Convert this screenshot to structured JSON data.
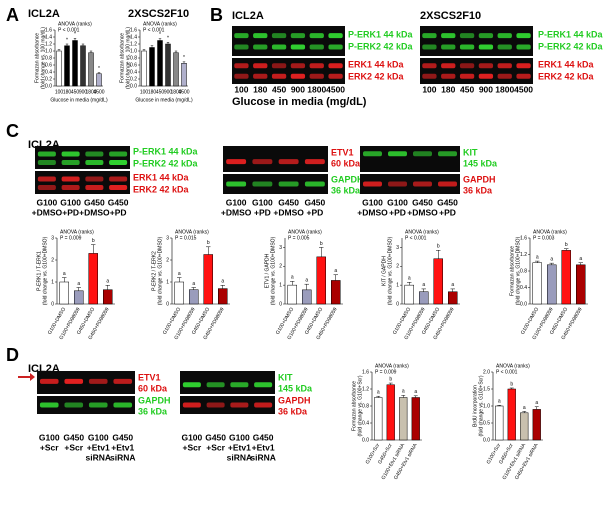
{
  "panel_letters": [
    "A",
    "B",
    "C",
    "D"
  ],
  "panel_a": {
    "cell_lines": [
      "ICL2A",
      "2XSCS2F10"
    ]
  },
  "panel_b": {
    "cell_lines": [
      "ICL2A",
      "2XSCS2F10"
    ],
    "blots": [
      {
        "labels": [
          {
            "text": "P-ERK1 44 kDa",
            "color": "#22cc22"
          },
          {
            "text": "P-ERK2 42 kDa",
            "color": "#22cc22"
          },
          {
            "text": "ERK1 44 kDa",
            "color": "#dd1111"
          },
          {
            "text": "ERK2 42 kDa",
            "color": "#dd1111"
          }
        ],
        "lanes": [
          "100",
          "180",
          "450",
          "900",
          "1800",
          "4500"
        ]
      },
      {
        "labels": [
          {
            "text": "P-ERK1 44 kDa",
            "color": "#22cc22"
          },
          {
            "text": "P-ERK2 42 kDa",
            "color": "#22cc22"
          },
          {
            "text": "ERK1 44 kDa",
            "color": "#dd1111"
          },
          {
            "text": "ERK2 42 kDa",
            "color": "#dd1111"
          }
        ],
        "lanes": [
          "100",
          "180",
          "450",
          "900",
          "1800",
          "4500"
        ]
      }
    ],
    "xlabel": "Glucose in media (mg/dL)"
  },
  "panel_c": {
    "cell_line": "ICL2A",
    "blots": [
      {
        "labels": [
          {
            "text": "P-ERK1 44 kDa",
            "color": "#22cc22"
          },
          {
            "text": "P-ERK2 42 kDa",
            "color": "#22cc22"
          },
          {
            "text": "ERK1 44 kDa",
            "color": "#dd1111"
          },
          {
            "text": "ERK2 42 kDa",
            "color": "#dd1111"
          }
        ],
        "lanes": [
          [
            "G100",
            "+DMSO"
          ],
          [
            "G100",
            "+PD"
          ],
          [
            "G450",
            "+DMSO"
          ],
          [
            "G450",
            "+PD"
          ]
        ]
      },
      {
        "labels": [
          {
            "text": "ETV1",
            "color": "#dd1111"
          },
          {
            "text": "60 kDa",
            "color": "#dd1111"
          },
          {
            "text": "GAPDH",
            "color": "#22cc22"
          },
          {
            "text": "36 kDa",
            "color": "#22cc22"
          }
        ],
        "lanes": [
          [
            "G100",
            "+DMSO"
          ],
          [
            "G100",
            "+PD"
          ],
          [
            "G450",
            "+DMSO"
          ],
          [
            "G450",
            "+PD"
          ]
        ]
      },
      {
        "labels": [
          {
            "text": "KIT",
            "color": "#22cc22"
          },
          {
            "text": "145 kDa",
            "color": "#22cc22"
          },
          {
            "text": "GAPDH",
            "color": "#dd1111"
          },
          {
            "text": "36 kDa",
            "color": "#dd1111"
          }
        ],
        "lanes": [
          [
            "G100",
            "+DMSO"
          ],
          [
            "G100",
            "+PD"
          ],
          [
            "G450",
            "+DMSO"
          ],
          [
            "G450",
            "+PD"
          ]
        ]
      }
    ]
  },
  "panel_d": {
    "cell_line": "ICL2A",
    "blots": [
      {
        "labels": [
          {
            "text": "ETV1",
            "color": "#dd1111"
          },
          {
            "text": "60 kDa",
            "color": "#dd1111"
          },
          {
            "text": "GAPDH",
            "color": "#22cc22"
          },
          {
            "text": "36 kDa",
            "color": "#22cc22"
          }
        ],
        "lanes": [
          [
            "G100",
            "+Scr"
          ],
          [
            "G450",
            "+Scr"
          ],
          [
            "G100",
            "+Etv1",
            "siRNA"
          ],
          [
            "G450",
            "+Etv1",
            "siRNA"
          ]
        ]
      },
      {
        "labels": [
          {
            "text": "KIT",
            "color": "#22cc22"
          },
          {
            "text": "145 kDa",
            "color": "#22cc22"
          },
          {
            "text": "GAPDH",
            "color": "#dd1111"
          },
          {
            "text": "36 kDa",
            "color": "#dd1111"
          }
        ],
        "lanes": [
          [
            "G100",
            "+Scr"
          ],
          [
            "G450",
            "+Scr"
          ],
          [
            "G100",
            "+Etv1",
            "siRNA"
          ],
          [
            "G450",
            "+Etv1",
            "siRNA"
          ]
        ]
      }
    ]
  },
  "chart_data": [
    {
      "type": "bar",
      "title_lines": [
        "ANOVA (ranks)",
        "P < 0.001"
      ],
      "ylabel_lines": [
        "Formazan absorbance",
        "(fold change vs. 100 mg/dL)"
      ],
      "xlabel": "Glucose in media (mg/dL)",
      "categories": [
        "100",
        "180",
        "450",
        "900",
        "1800",
        "4500"
      ],
      "values": [
        1.0,
        1.15,
        1.3,
        1.15,
        0.95,
        0.35
      ],
      "errors": [
        0.04,
        0.05,
        0.06,
        0.05,
        0.05,
        0.03
      ],
      "annotations": [
        null,
        "*",
        "*",
        null,
        null,
        "*"
      ],
      "colors": [
        "#ffffff",
        "#000000",
        "#000000",
        "#333333",
        "#888888",
        "#b0b0cc"
      ],
      "ylim": [
        0,
        1.6
      ],
      "yticks": [
        {
          "value": 0,
          "label": "0.0"
        },
        {
          "value": 0.2,
          "label": "0.2"
        },
        {
          "value": 0.4,
          "label": "0.4"
        },
        {
          "value": 0.6,
          "label": "0.6"
        },
        {
          "value": 0.8,
          "label": "0.8"
        },
        {
          "value": 1.0,
          "label": "1.0"
        },
        {
          "value": 1.2,
          "label": "1.2"
        },
        {
          "value": 1.4,
          "label": "1.4"
        },
        {
          "value": 1.6,
          "label": "1.6"
        }
      ]
    },
    {
      "type": "bar",
      "title_lines": [
        "ANOVA (ranks)",
        "P < 0.001"
      ],
      "ylabel_lines": [
        "Formazan absorbance",
        "(fold change vs. 100 mg/dL)"
      ],
      "xlabel": "Glucose in media (mg/dL)",
      "categories": [
        "100",
        "180",
        "450",
        "900",
        "1800",
        "4500"
      ],
      "values": [
        1.0,
        1.1,
        1.3,
        1.2,
        0.95,
        0.65
      ],
      "errors": [
        0.04,
        0.05,
        0.05,
        0.05,
        0.05,
        0.04
      ],
      "annotations": [
        null,
        null,
        "*",
        "*",
        null,
        "*"
      ],
      "colors": [
        "#ffffff",
        "#000000",
        "#000000",
        "#333333",
        "#888888",
        "#b0b0cc"
      ],
      "ylim": [
        0,
        1.6
      ],
      "yticks": [
        {
          "value": 0,
          "label": "0.0"
        },
        {
          "value": 0.2,
          "label": "0.2"
        },
        {
          "value": 0.4,
          "label": "0.4"
        },
        {
          "value": 0.6,
          "label": "0.6"
        },
        {
          "value": 0.8,
          "label": "0.8"
        },
        {
          "value": 1.0,
          "label": "1.0"
        },
        {
          "value": 1.2,
          "label": "1.2"
        },
        {
          "value": 1.4,
          "label": "1.4"
        },
        {
          "value": 1.6,
          "label": "1.6"
        }
      ]
    },
    {
      "type": "bar",
      "title_lines": [
        "ANOVA (ranks)",
        "P = 0.009"
      ],
      "ylabel_lines": [
        "P-ERK1 / T-ERK1",
        "(fold change vs. G100+DMSO)"
      ],
      "categories": [
        "G100+DMSO",
        "G100+PD98059",
        "G450+DMSO",
        "G450+PD98059"
      ],
      "values": [
        1.0,
        0.6,
        2.3,
        0.65
      ],
      "errors": [
        0.2,
        0.15,
        0.4,
        0.2
      ],
      "annotations": [
        "a",
        "a",
        "b",
        "a"
      ],
      "colors": [
        "#ffffff",
        "#9a9cbc",
        "#ff1111",
        "#aa0000"
      ],
      "ylim": [
        0,
        3
      ],
      "yticks": [
        0,
        1,
        2,
        3
      ]
    },
    {
      "type": "bar",
      "title_lines": [
        "ANOVA (ranks)",
        "P = 0.015"
      ],
      "ylabel_lines": [
        "P-ERK2 / T-ERK2",
        "(fold change vs. G100+DMSO)"
      ],
      "categories": [
        "G100+DMSO",
        "G100+PD98059",
        "G450+DMSO",
        "G450+PD98059"
      ],
      "values": [
        1.0,
        0.65,
        2.25,
        0.7
      ],
      "errors": [
        0.2,
        0.1,
        0.35,
        0.15
      ],
      "annotations": [
        "a",
        "a",
        "b",
        "a"
      ],
      "colors": [
        "#ffffff",
        "#9a9cbc",
        "#ff1111",
        "#aa0000"
      ],
      "ylim": [
        0,
        3
      ],
      "yticks": [
        0,
        1,
        2,
        3
      ]
    },
    {
      "type": "bar",
      "title_lines": [
        "ANOVA (ranks)",
        "P = 0.005"
      ],
      "ylabel_lines": [
        "ETV1 / GAPDH",
        "(fold change vs. G100+DMSO)"
      ],
      "categories": [
        "G100+DMSO",
        "G100+PD98059",
        "G450+DMSO",
        "G450+PD98059"
      ],
      "values": [
        1.0,
        0.75,
        2.5,
        1.25
      ],
      "errors": [
        0.2,
        0.3,
        0.5,
        0.3
      ],
      "annotations": [
        "a",
        "a",
        "b",
        "a"
      ],
      "colors": [
        "#ffffff",
        "#9a9cbc",
        "#ff1111",
        "#aa0000"
      ],
      "ylim": [
        0,
        3.5
      ],
      "yticks": [
        0,
        1,
        2,
        3
      ]
    },
    {
      "type": "bar",
      "title_lines": [
        "ANOVA (ranks)",
        "P < 0.001"
      ],
      "ylabel_lines": [
        "KIT / GAPDH",
        "(fold change vs. G100+DMSO)"
      ],
      "categories": [
        "G100+DMSO",
        "G100+PD98059",
        "G450+DMSO",
        "G450+PD98059"
      ],
      "values": [
        1.0,
        0.65,
        2.4,
        0.65
      ],
      "errors": [
        0.15,
        0.15,
        0.45,
        0.15
      ],
      "annotations": [
        "a",
        "a",
        "b",
        "a"
      ],
      "colors": [
        "#ffffff",
        "#9a9cbc",
        "#ff1111",
        "#aa0000"
      ],
      "ylim": [
        0,
        3.5
      ],
      "yticks": [
        0,
        1,
        2,
        3
      ]
    },
    {
      "type": "bar",
      "title_lines": [
        "ANOVA (ranks)",
        "P = 0.003"
      ],
      "ylabel_lines": [
        "Formazan absorbance",
        "(fold change vs. G100+DMSO)"
      ],
      "categories": [
        "G100+DMSO",
        "G100+PD98059",
        "G450+DMSO",
        "G450+PD98059"
      ],
      "values": [
        1.0,
        0.95,
        1.3,
        0.95
      ],
      "errors": [
        0.04,
        0.04,
        0.04,
        0.05
      ],
      "annotations": [
        "a",
        "a",
        "b",
        "a"
      ],
      "colors": [
        "#ffffff",
        "#9a9cbc",
        "#ff1111",
        "#aa0000"
      ],
      "ylim": [
        0,
        1.6
      ],
      "yticks": [
        {
          "value": 0,
          "label": "0.0"
        },
        {
          "value": 0.4,
          "label": "0.4"
        },
        {
          "value": 0.8,
          "label": "0.8"
        },
        {
          "value": 1.2,
          "label": "1.2"
        },
        {
          "value": 1.6,
          "label": "1.6"
        }
      ]
    },
    {
      "type": "bar",
      "title_lines": [
        "ANOVA (ranks)",
        "P = 0.009"
      ],
      "ylabel_lines": [
        "Formazan absorbance",
        "(fold change vs. G100+Scr)"
      ],
      "categories": [
        "G100+Scr",
        "G450+Scr",
        "G100+Etv1 siRNA",
        "G450+Etv1 siRNA"
      ],
      "values": [
        1.0,
        1.3,
        1.0,
        1.0
      ],
      "errors": [
        0.03,
        0.04,
        0.05,
        0.04
      ],
      "annotations": [
        "a",
        "b",
        "a",
        "a"
      ],
      "colors": [
        "#ffffff",
        "#ff1111",
        "#c8c0ae",
        "#aa0000"
      ],
      "ylim": [
        0,
        1.6
      ],
      "yticks": [
        {
          "value": 0,
          "label": "0.0"
        },
        {
          "value": 0.4,
          "label": "0.4"
        },
        {
          "value": 0.8,
          "label": "0.8"
        },
        {
          "value": 1.2,
          "label": "1.2"
        },
        {
          "value": 1.6,
          "label": "1.6"
        }
      ]
    },
    {
      "type": "bar",
      "title_lines": [
        "ANOVA (ranks)",
        "P < 0.001"
      ],
      "ylabel_lines": [
        "BrdU incorporation",
        "(fold change vs. G100+Scr)"
      ],
      "categories": [
        "G100+Scr",
        "G450+Scr",
        "G100+Etv1 siRNA",
        "G450+Etv1 siRNA"
      ],
      "values": [
        1.0,
        1.5,
        0.8,
        0.9
      ],
      "errors": [
        0.02,
        0.03,
        0.04,
        0.08
      ],
      "annotations": [
        "a",
        "b",
        "a",
        "a"
      ],
      "colors": [
        "#ffffff",
        "#ff1111",
        "#c8c0ae",
        "#aa0000"
      ],
      "ylim": [
        0,
        2.0
      ],
      "yticks": [
        {
          "value": 0,
          "label": "0.0"
        },
        {
          "value": 0.5,
          "label": "0.5"
        },
        {
          "value": 1.0,
          "label": "1.0"
        },
        {
          "value": 1.5,
          "label": "1.5"
        },
        {
          "value": 2.0,
          "label": "2.0"
        }
      ]
    }
  ]
}
